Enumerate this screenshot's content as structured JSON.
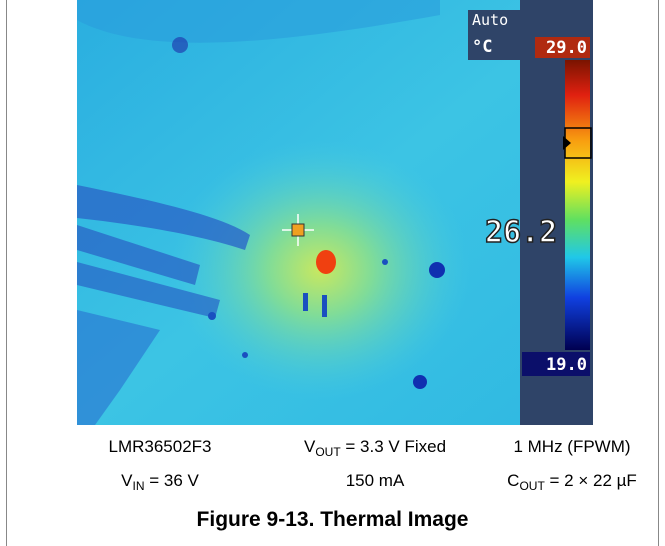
{
  "image": {
    "mode": "Auto",
    "unit": "°C",
    "max": "29.0",
    "spot": "26.2",
    "min": "19.0"
  },
  "captions": [
    [
      [
        {
          "text": "LMR36502F3"
        }
      ],
      [
        {
          "text": "V"
        },
        {
          "sub": "OUT"
        },
        {
          "text": " = 3.3 V Fixed"
        }
      ],
      [
        {
          "text": "1 MHz (FPWM)"
        }
      ]
    ],
    [
      [
        {
          "text": "V"
        },
        {
          "sub": "IN"
        },
        {
          "text": " = 36 V"
        }
      ],
      [
        {
          "text": "150 mA"
        }
      ],
      [
        {
          "text": "C"
        },
        {
          "sub": "OUT"
        },
        {
          "text": " = 2 × 22 µF"
        }
      ]
    ]
  ],
  "title": "Figure 9-13. Thermal Image"
}
